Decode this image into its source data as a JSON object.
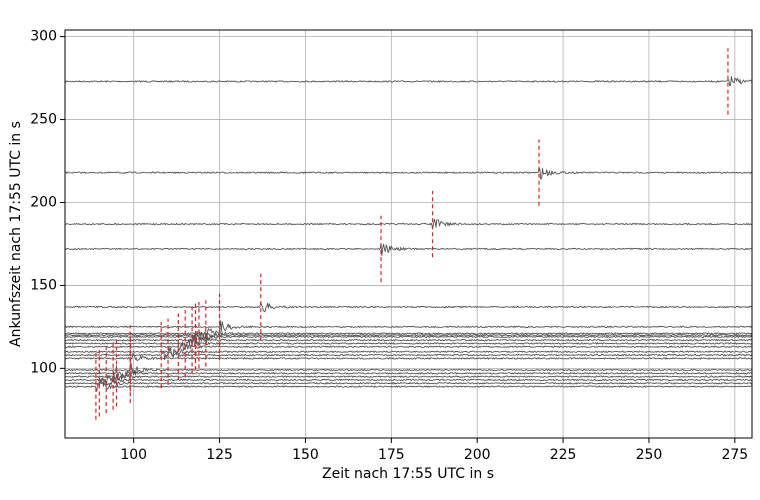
{
  "chart_data": {
    "type": "record_section",
    "xlabel": "Zeit nach 17:55 UTC in s",
    "ylabel": "Ankunfszeit nach 17:55 UTC in s",
    "xlim": [
      80,
      280
    ],
    "xticks": [
      100,
      125,
      150,
      175,
      200,
      225,
      250,
      275
    ],
    "ylim": [
      58,
      304
    ],
    "yticks": [
      100,
      150,
      200,
      250,
      300
    ],
    "grid": true,
    "trace_color": "#555555",
    "pick_color": "#d62728",
    "trace_offsets": [
      273,
      218,
      187,
      172,
      137,
      125,
      121,
      120,
      119,
      117,
      115,
      113,
      110,
      108,
      106,
      99,
      97,
      95,
      93,
      91,
      89
    ],
    "pick_times": [
      273,
      218,
      187,
      172,
      137,
      125,
      121,
      119,
      118,
      117,
      115,
      113,
      110,
      108,
      99,
      99,
      95,
      94,
      92,
      90,
      89
    ]
  }
}
